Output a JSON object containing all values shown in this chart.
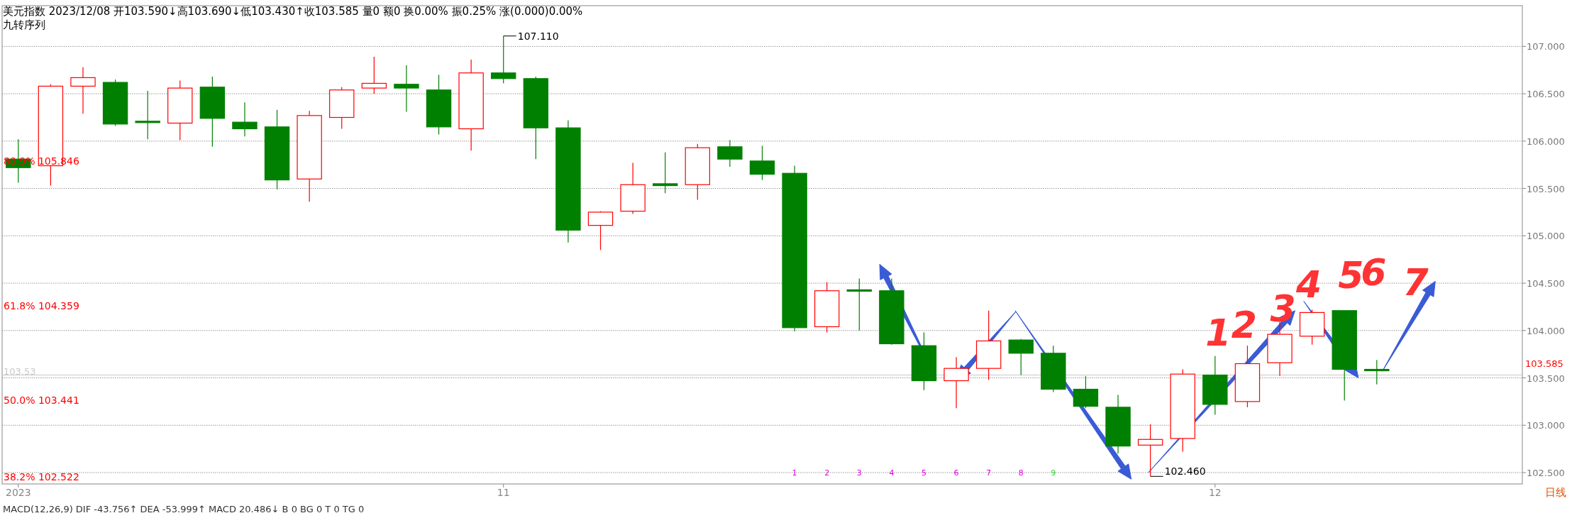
{
  "chart_data": {
    "type": "candlestick",
    "title": "美元指数 2023/12/08 开103.590↓高103.690↓低103.430↑收103.585 量0 额0 换0.00% 振0.25% 涨(0.000)0.00%",
    "subtitle": "九转序列",
    "categories": [
      "2023",
      null,
      null,
      null,
      null,
      null,
      null,
      null,
      null,
      null,
      null,
      null,
      null,
      null,
      null,
      "11",
      null,
      null,
      null,
      null,
      null,
      null,
      null,
      null,
      null,
      null,
      null,
      null,
      null,
      null,
      null,
      null,
      null,
      null,
      null,
      null,
      null,
      "12",
      null,
      null,
      null,
      null,
      null,
      null,
      null,
      null,
      null
    ],
    "ohlc": [
      [
        105.81,
        106.02,
        105.56,
        105.72
      ],
      [
        105.74,
        106.6,
        105.53,
        106.58
      ],
      [
        106.58,
        106.78,
        106.29,
        106.67
      ],
      [
        106.62,
        106.65,
        106.16,
        106.18
      ],
      [
        106.21,
        106.53,
        106.02,
        106.2
      ],
      [
        106.19,
        106.64,
        106.01,
        106.56
      ],
      [
        106.57,
        106.68,
        105.94,
        106.24
      ],
      [
        106.2,
        106.41,
        106.05,
        106.13
      ],
      [
        106.15,
        106.33,
        105.49,
        105.59
      ],
      [
        105.6,
        106.32,
        105.36,
        106.27
      ],
      [
        106.25,
        106.57,
        106.13,
        106.54
      ],
      [
        106.56,
        106.89,
        106.5,
        106.61
      ],
      [
        106.6,
        106.8,
        106.31,
        106.56
      ],
      [
        106.54,
        106.7,
        106.07,
        106.15
      ],
      [
        106.13,
        106.86,
        105.9,
        106.72
      ],
      [
        106.72,
        107.11,
        106.61,
        106.66
      ],
      [
        106.66,
        106.68,
        105.81,
        106.14
      ],
      [
        106.14,
        106.22,
        104.93,
        105.06
      ],
      [
        105.11,
        105.26,
        104.85,
        105.25
      ],
      [
        105.26,
        105.77,
        105.23,
        105.54
      ],
      [
        105.55,
        105.88,
        105.45,
        105.53
      ],
      [
        105.54,
        105.97,
        105.38,
        105.93
      ],
      [
        105.94,
        106.01,
        105.73,
        105.81
      ],
      [
        105.79,
        105.95,
        105.59,
        105.65
      ],
      [
        105.66,
        105.74,
        103.99,
        104.03
      ],
      [
        104.04,
        104.51,
        103.98,
        104.42
      ],
      [
        104.43,
        104.55,
        104.0,
        104.42
      ],
      [
        104.42,
        104.55,
        103.85,
        103.86
      ],
      [
        103.84,
        103.98,
        103.37,
        103.47
      ],
      [
        103.47,
        103.72,
        103.18,
        103.6
      ],
      [
        103.6,
        104.21,
        103.48,
        103.89
      ],
      [
        103.9,
        103.91,
        103.53,
        103.76
      ],
      [
        103.76,
        103.84,
        103.35,
        103.38
      ],
      [
        103.38,
        103.52,
        103.18,
        103.2
      ],
      [
        103.19,
        103.32,
        102.7,
        102.78
      ],
      [
        102.79,
        103.01,
        102.46,
        102.85
      ],
      [
        102.86,
        103.59,
        102.72,
        103.54
      ],
      [
        103.53,
        103.73,
        103.11,
        103.22
      ],
      [
        103.25,
        103.84,
        103.19,
        103.65
      ],
      [
        103.66,
        104.09,
        103.52,
        103.96
      ],
      [
        103.94,
        104.22,
        103.85,
        104.19
      ],
      [
        104.21,
        104.21,
        103.26,
        103.59
      ],
      [
        103.59,
        103.69,
        103.43,
        103.585
      ],
      null,
      null,
      null,
      null
    ],
    "colors": [
      "#008000",
      "#ff0000",
      "#ff0000",
      "#008000",
      "#008000",
      "#ff0000",
      "#008000",
      "#008000",
      "#008000",
      "#ff0000",
      "#ff0000",
      "#ff0000",
      "#008000",
      "#008000",
      "#ff0000",
      "#008000",
      "#008000",
      "#008000",
      "#ff0000",
      "#ff0000",
      "#008000",
      "#ff0000",
      "#008000",
      "#008000",
      "#008000",
      "#ff0000",
      "#008000",
      "#008000",
      "#008000",
      "#ff0000",
      "#ff0000",
      "#008000",
      "#008000",
      "#008000",
      "#008000",
      "#ff0000",
      "#ff0000",
      "#008000",
      "#ff0000",
      "#ff0000",
      "#ff0000",
      "#008000",
      "#008000",
      null,
      null,
      null,
      null
    ],
    "value_labels": [
      null,
      null,
      null,
      null,
      null,
      null,
      null,
      null,
      null,
      null,
      null,
      null,
      null,
      null,
      null,
      null,
      null,
      null,
      null,
      null,
      null,
      null,
      null,
      null,
      "1",
      "2",
      "3",
      "4",
      "5",
      "6",
      "7",
      "8",
      "9",
      null,
      null,
      null,
      null,
      null,
      null,
      null,
      null,
      null,
      null,
      null,
      null,
      null,
      null
    ],
    "ylim": [
      102.38,
      107.43
    ],
    "yticks": [
      {
        "value": 102.5,
        "label": "102.500"
      },
      {
        "value": 103,
        "label": "103.000"
      },
      {
        "value": 103.5,
        "label": "103.500"
      },
      {
        "value": 104,
        "label": "104.000"
      },
      {
        "value": 104.5,
        "label": "104.500"
      },
      {
        "value": 105,
        "label": "105.000"
      },
      {
        "value": 105.5,
        "label": "105.500"
      },
      {
        "value": 106,
        "label": "106.000"
      },
      {
        "value": 106.5,
        "label": "106.500"
      },
      {
        "value": 107,
        "label": "107.000"
      }
    ],
    "grid": "y",
    "ref_lines": [
      {
        "axis": "y",
        "value": 103.53,
        "label": "103.53",
        "color": "#c8c8c8"
      }
    ],
    "annotations": [
      "80.9% 105.846",
      "61.8% 104.359",
      "50.0% 103.441",
      "38.2% 102.522",
      "107.110",
      "102.460",
      "103.585",
      "1",
      "2",
      "3",
      "4",
      "5",
      "6",
      "7",
      "MACD(12,26,9) DIF -43.756↑ DEA -53.999↑ MACD 20.486↓ B 0 BG 0 T 0 TG 0",
      "日线"
    ]
  }
}
